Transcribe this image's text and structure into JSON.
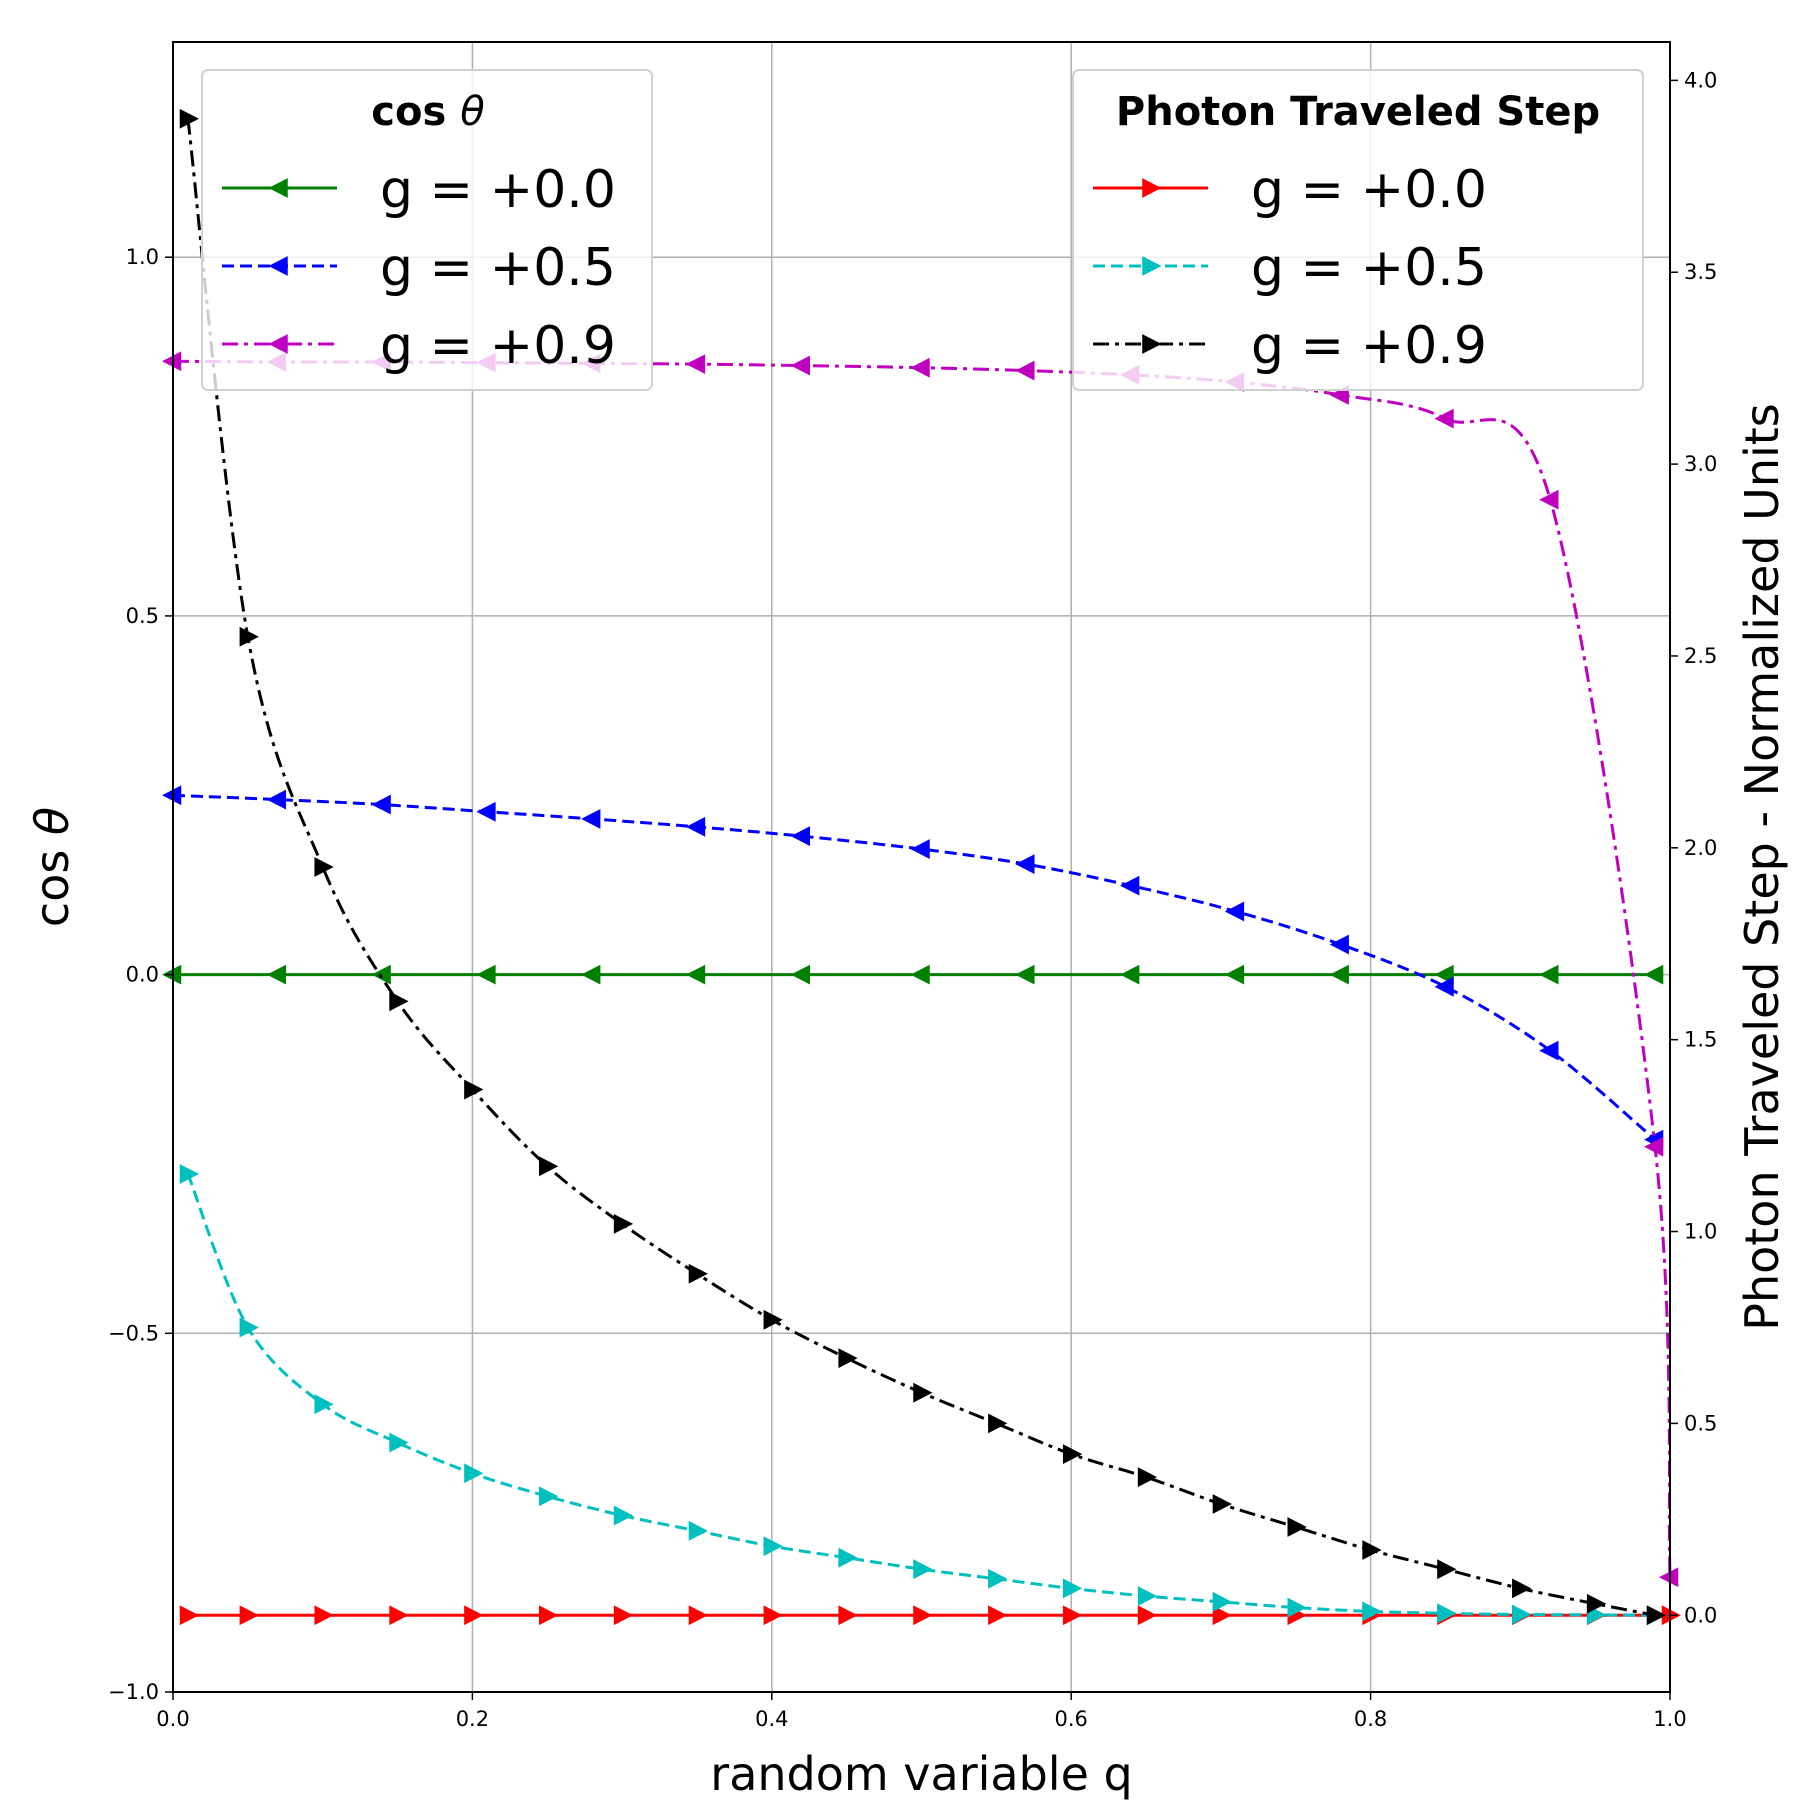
{
  "chart_data": {
    "type": "line",
    "xlabel": "random variable q",
    "xlim": [
      0.0,
      1.0
    ],
    "x_ticks": [
      0.0,
      0.2,
      0.4,
      0.6,
      0.8,
      1.0
    ],
    "x_tick_labels": [
      "0.0",
      "0.2",
      "0.4",
      "0.6",
      "0.8",
      "1.0"
    ],
    "grid": true,
    "left_axis": {
      "label_main": "cos ",
      "label_symbol": "θ",
      "ylim": [
        -1.0,
        1.3
      ],
      "ticks": [
        -1.0,
        -0.5,
        0.0,
        0.5,
        1.0
      ],
      "tick_labels": [
        "−1.0",
        "−0.5",
        "0.0",
        "0.5",
        "1.0"
      ]
    },
    "right_axis": {
      "label": "Photon Traveled Step - Normalized Units",
      "ylim": [
        -0.2,
        4.1
      ],
      "ticks": [
        0.0,
        0.5,
        1.0,
        1.5,
        2.0,
        2.5,
        3.0,
        3.5,
        4.0
      ],
      "tick_labels": [
        "0.0",
        "0.5",
        "1.0",
        "1.5",
        "2.0",
        "2.5",
        "3.0",
        "3.5",
        "4.0"
      ]
    },
    "legends": [
      {
        "position": "upper-left",
        "title_main": "cos ",
        "title_symbol": "θ",
        "entries": [
          {
            "label": "g = +0.0",
            "color": "#008000",
            "dash": "solid",
            "marker": "triangle-left"
          },
          {
            "label": "g = +0.5",
            "color": "#0000ff",
            "dash": "dashed",
            "marker": "triangle-left"
          },
          {
            "label": "g = +0.9",
            "color": "#bf00bf",
            "dash": "dashdot",
            "marker": "triangle-left"
          }
        ]
      },
      {
        "position": "upper-right",
        "title": "Photon Traveled Step",
        "entries": [
          {
            "label": "g = +0.0",
            "color": "#ff0000",
            "dash": "solid",
            "marker": "triangle-right"
          },
          {
            "label": "g = +0.5",
            "color": "#00bfbf",
            "dash": "dashed",
            "marker": "triangle-right"
          },
          {
            "label": "g = +0.9",
            "color": "#000000",
            "dash": "dashdot",
            "marker": "triangle-right"
          }
        ]
      }
    ],
    "series": [
      {
        "name": "cos θ g = +0.0",
        "axis": "left",
        "color": "#008000",
        "dash": "solid",
        "marker": "triangle-left",
        "x": [
          0.0,
          0.07,
          0.14,
          0.21,
          0.28,
          0.35,
          0.42,
          0.5,
          0.57,
          0.64,
          0.71,
          0.78,
          0.85,
          0.92,
          0.99
        ],
        "y": [
          0,
          0,
          0,
          0,
          0,
          0,
          0,
          0,
          0,
          0,
          0,
          0,
          0,
          0,
          0
        ]
      },
      {
        "name": "cos θ g = +0.5",
        "axis": "left",
        "color": "#0000ff",
        "dash": "dashed",
        "marker": "triangle-left",
        "x": [
          0.0,
          0.07,
          0.14,
          0.21,
          0.28,
          0.35,
          0.42,
          0.5,
          0.57,
          0.64,
          0.71,
          0.78,
          0.85,
          0.92,
          0.99
        ],
        "y": [
          0.25,
          0.244,
          0.237,
          0.227,
          0.217,
          0.206,
          0.193,
          0.175,
          0.154,
          0.124,
          0.088,
          0.042,
          -0.017,
          -0.106,
          -0.23
        ]
      },
      {
        "name": "cos θ g = +0.9",
        "axis": "left",
        "color": "#bf00bf",
        "dash": "dashdot",
        "marker": "triangle-left",
        "x": [
          0.0,
          0.07,
          0.14,
          0.21,
          0.28,
          0.35,
          0.42,
          0.5,
          0.57,
          0.64,
          0.71,
          0.78,
          0.85,
          0.92,
          0.99,
          1.0
        ],
        "y": [
          0.855,
          0.854,
          0.854,
          0.853,
          0.852,
          0.851,
          0.849,
          0.846,
          0.842,
          0.836,
          0.826,
          0.808,
          0.775,
          0.662,
          -0.24,
          -0.84
        ]
      },
      {
        "name": "Photon Traveled Step g = +0.0",
        "axis": "right",
        "color": "#ff0000",
        "dash": "solid",
        "marker": "triangle-right",
        "x": [
          0.01,
          0.05,
          0.1,
          0.15,
          0.2,
          0.25,
          0.3,
          0.35,
          0.4,
          0.45,
          0.5,
          0.55,
          0.6,
          0.65,
          0.7,
          0.75,
          0.8,
          0.85,
          0.9,
          0.95,
          1.0
        ],
        "y": [
          0,
          0,
          0,
          0,
          0,
          0,
          0,
          0,
          0,
          0,
          0,
          0,
          0,
          0,
          0,
          0,
          0,
          0,
          0,
          0,
          0
        ]
      },
      {
        "name": "Photon Traveled Step g = +0.5",
        "axis": "right",
        "color": "#00bfbf",
        "dash": "dashed",
        "marker": "triangle-right",
        "x": [
          0.01,
          0.05,
          0.1,
          0.15,
          0.2,
          0.25,
          0.3,
          0.35,
          0.4,
          0.45,
          0.5,
          0.55,
          0.6,
          0.65,
          0.7,
          0.75,
          0.8,
          0.85,
          0.9,
          0.95,
          0.99
        ],
        "y": [
          1.15,
          0.75,
          0.55,
          0.45,
          0.37,
          0.31,
          0.26,
          0.22,
          0.18,
          0.15,
          0.12,
          0.095,
          0.07,
          0.05,
          0.035,
          0.02,
          0.01,
          0.005,
          0.002,
          0.001,
          0.0
        ]
      },
      {
        "name": "Photon Traveled Step g = +0.9",
        "axis": "right",
        "color": "#000000",
        "dash": "dashdot",
        "marker": "triangle-right",
        "x": [
          0.01,
          0.05,
          0.1,
          0.15,
          0.2,
          0.25,
          0.3,
          0.35,
          0.4,
          0.45,
          0.5,
          0.55,
          0.6,
          0.65,
          0.7,
          0.75,
          0.8,
          0.85,
          0.9,
          0.95,
          0.99
        ],
        "y": [
          3.9,
          2.55,
          1.95,
          1.6,
          1.37,
          1.17,
          1.02,
          0.89,
          0.77,
          0.67,
          0.58,
          0.5,
          0.42,
          0.36,
          0.29,
          0.23,
          0.17,
          0.12,
          0.07,
          0.03,
          0.0
        ]
      }
    ]
  }
}
